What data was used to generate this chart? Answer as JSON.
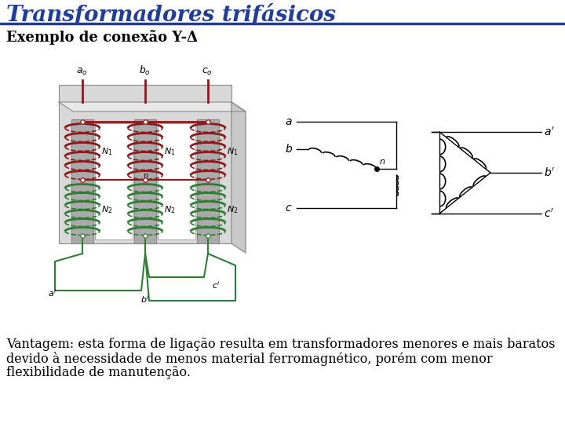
{
  "title": "Transformadores trifásicos",
  "title_color": "#1F3D99",
  "title_fontsize": 20,
  "subtitle": "Exemplo de conexão Y-Δ",
  "subtitle_fontsize": 13,
  "body_text_1": "Vantagem: esta forma de ligação resulta em transformadores menores e mais baratos",
  "body_text_2": "devido à necessidade de menos material ferromagnético, porém com menor",
  "body_text_3": "flexibilidade de manutenção.",
  "body_fontsize": 11.5,
  "background_color": "#ffffff",
  "separator_color": "#1F3D99",
  "red_color": "#8B1A1A",
  "green_color": "#2E7D32",
  "gray_light": "#d8d8d8",
  "gray_mid": "#aaaaaa",
  "gray_dark": "#888888"
}
